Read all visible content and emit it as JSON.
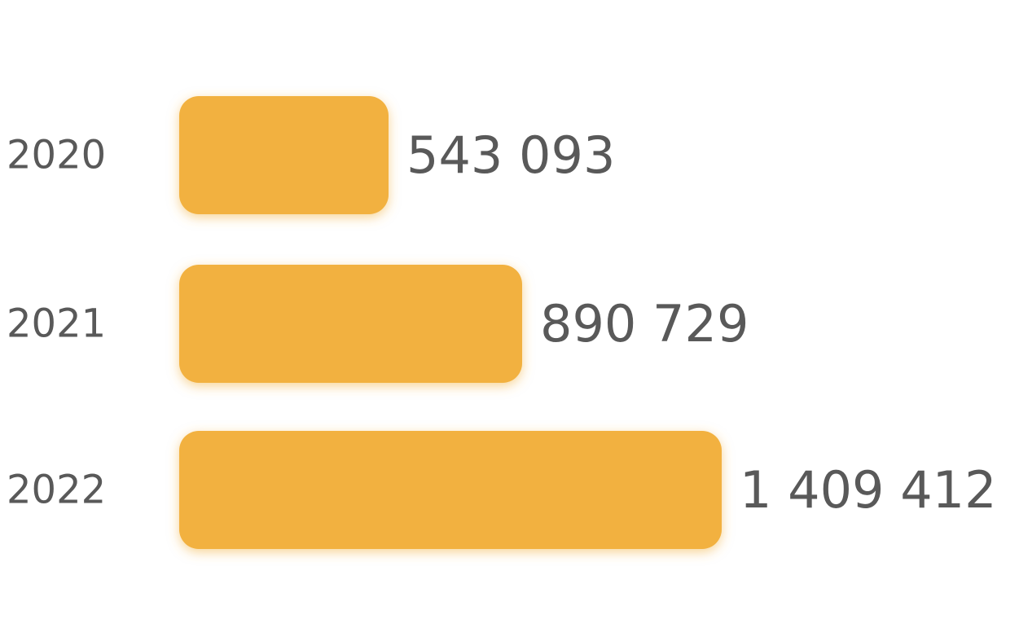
{
  "chart_data": {
    "type": "bar",
    "orientation": "horizontal",
    "categories": [
      "2020",
      "2021",
      "2022"
    ],
    "values": [
      543093,
      890729,
      1409412
    ],
    "value_labels": [
      "543 093",
      "890 729",
      "1 409 412"
    ],
    "title": "",
    "xlabel": "",
    "ylabel": "",
    "xlim": [
      0,
      1409412
    ],
    "grid": false,
    "legend": "none",
    "bar_color": "#F2B13F",
    "text_color": "#595959"
  }
}
